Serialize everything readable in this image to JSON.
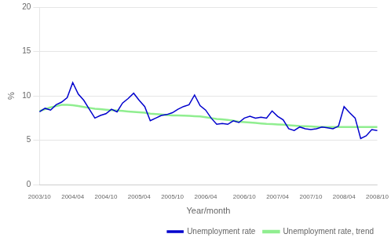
{
  "chart_data": {
    "type": "line",
    "x_label": "Year/month",
    "y_label": "%",
    "categories": [
      "2003/10",
      null,
      null,
      null,
      null,
      null,
      "2004/04",
      null,
      null,
      null,
      null,
      null,
      "2004/10",
      null,
      null,
      null,
      null,
      null,
      "2005/04",
      null,
      null,
      null,
      null,
      null,
      "2005/10",
      null,
      null,
      null,
      null,
      null,
      "2006/04",
      null,
      null,
      null,
      null,
      null,
      null,
      "2006/10",
      null,
      null,
      null,
      null,
      null,
      "2007/04",
      null,
      null,
      null,
      null,
      null,
      "2007/10",
      null,
      null,
      null,
      null,
      null,
      "2008/04",
      null,
      null,
      null,
      null,
      null,
      "2008/10"
    ],
    "series": [
      {
        "name": "Unemployment rate",
        "color": "#0000CD",
        "values": [
          8.2,
          8.6,
          8.4,
          9.0,
          9.3,
          9.8,
          11.5,
          10.2,
          9.5,
          8.5,
          7.5,
          7.8,
          8.0,
          8.5,
          8.2,
          9.2,
          9.7,
          10.3,
          9.5,
          8.8,
          7.2,
          7.5,
          7.8,
          7.9,
          8.1,
          8.5,
          8.8,
          9.0,
          10.1,
          8.9,
          8.4,
          7.5,
          6.8,
          6.9,
          6.8,
          7.2,
          7.0,
          7.5,
          7.7,
          7.5,
          7.6,
          7.5,
          8.3,
          7.7,
          7.3,
          6.3,
          6.1,
          6.5,
          6.3,
          6.2,
          6.3,
          6.5,
          6.4,
          6.3,
          6.6,
          8.8,
          8.1,
          7.5,
          5.2,
          5.5,
          6.2,
          6.1
        ]
      },
      {
        "name": "Unemployment rate, trend",
        "color": "#90EE90",
        "values": [
          8.3,
          8.5,
          8.7,
          8.85,
          9.0,
          9.0,
          8.95,
          8.85,
          8.75,
          8.65,
          8.55,
          8.5,
          8.45,
          8.4,
          8.35,
          8.3,
          8.25,
          8.2,
          8.15,
          8.1,
          8.0,
          7.95,
          7.9,
          7.85,
          7.8,
          7.8,
          7.78,
          7.75,
          7.72,
          7.68,
          7.6,
          7.5,
          7.4,
          7.35,
          7.3,
          7.2,
          7.1,
          7.05,
          7.0,
          6.95,
          6.9,
          6.85,
          6.82,
          6.78,
          6.75,
          6.7,
          6.65,
          6.6,
          6.58,
          6.55,
          6.52,
          6.5,
          6.5,
          6.5,
          6.5,
          6.5,
          6.5,
          6.5,
          6.5,
          6.5,
          6.5,
          6.5
        ]
      }
    ],
    "ylim": [
      0,
      20
    ],
    "yticks": [
      0,
      5,
      10,
      15,
      20
    ],
    "grid": true,
    "legend": "lower right"
  }
}
